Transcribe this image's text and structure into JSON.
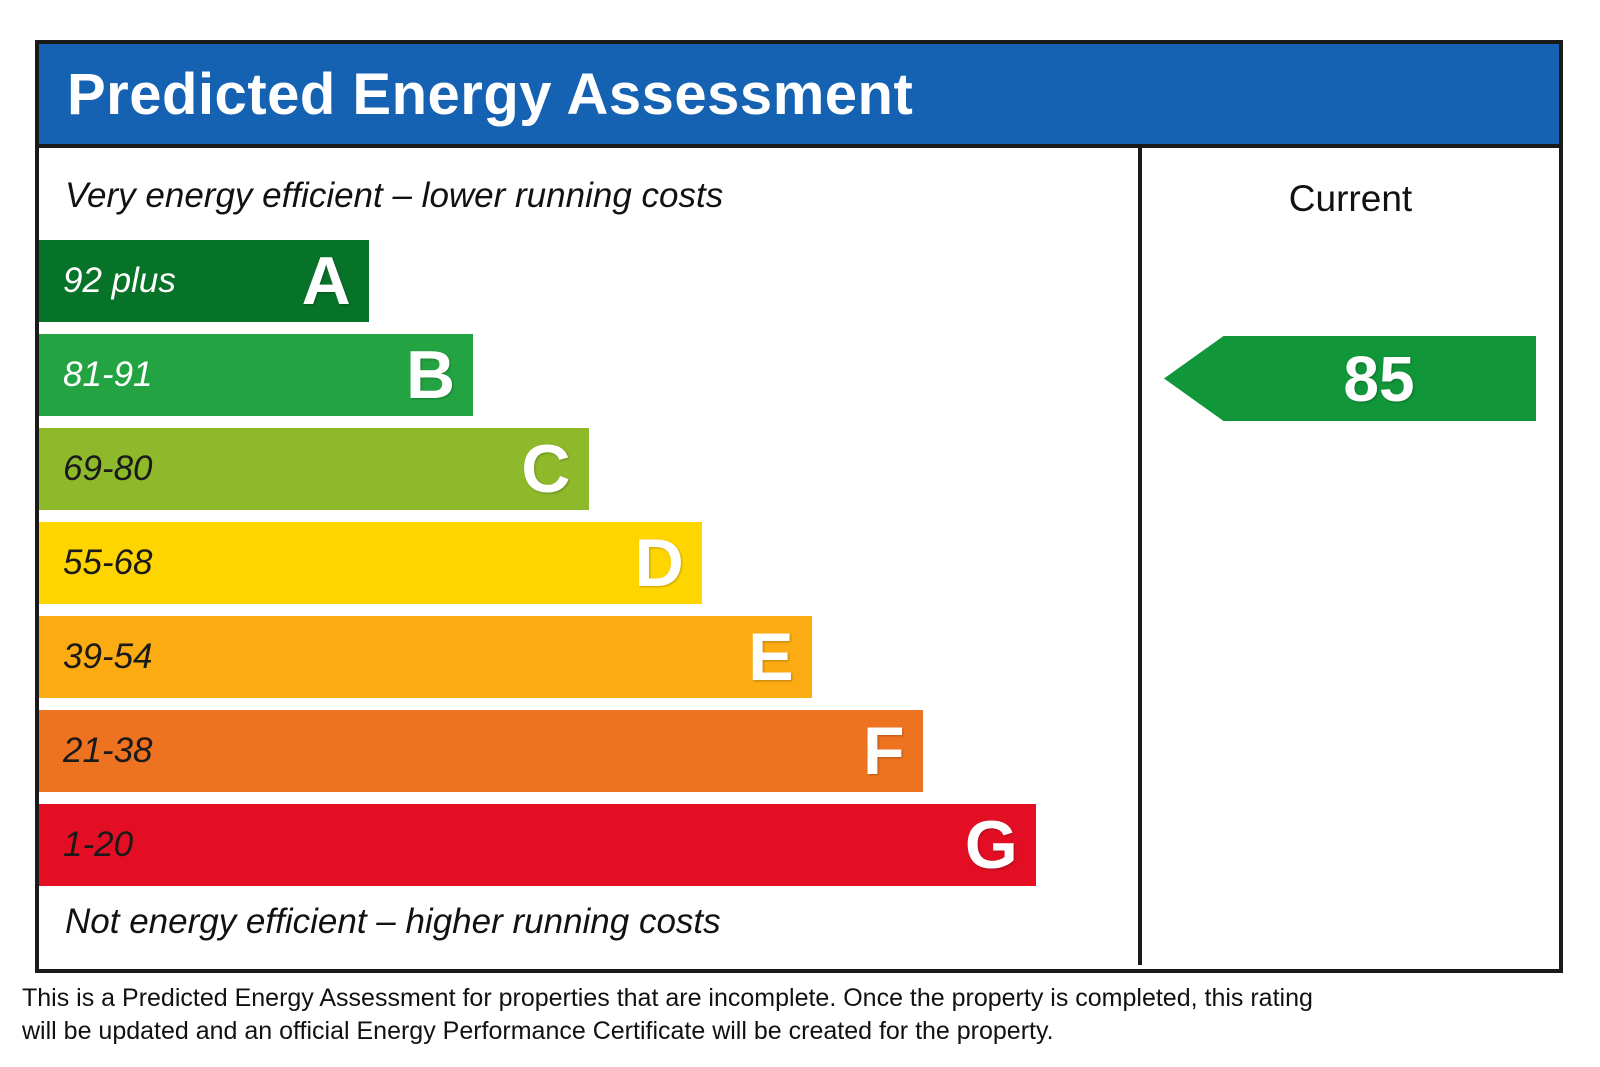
{
  "title": "Predicted Energy Assessment",
  "labels": {
    "top": "Very energy efficient – lower running costs",
    "bottom": "Not energy efficient – higher running costs"
  },
  "bands": [
    {
      "letter": "A",
      "range": "92 plus",
      "color": "#077329",
      "text_color": "#ffffff",
      "width_pct": 30.0
    },
    {
      "letter": "B",
      "range": "81-91",
      "color": "#23A341",
      "text_color": "#ffffff",
      "width_pct": 39.5
    },
    {
      "letter": "C",
      "range": "69-80",
      "color": "#8DB92A",
      "text_color": "#1a1a1a",
      "width_pct": 50.0
    },
    {
      "letter": "D",
      "range": "55-68",
      "color": "#FFD500",
      "text_color": "#1a1a1a",
      "width_pct": 60.3
    },
    {
      "letter": "E",
      "range": "39-54",
      "color": "#FCAB12",
      "text_color": "#1a1a1a",
      "width_pct": 70.3
    },
    {
      "letter": "F",
      "range": "21-38",
      "color": "#EE7320",
      "text_color": "#1a1a1a",
      "width_pct": 80.4
    },
    {
      "letter": "G",
      "range": "1-20",
      "color": "#E30E24",
      "text_color": "#1a1a1a",
      "width_pct": 90.7
    }
  ],
  "current": {
    "header": "Current",
    "value": "85",
    "band": "B",
    "arrow_color": "#119639"
  },
  "footer": "This is a Predicted Energy Assessment for properties that are incomplete. Once the property is completed, this rating will be updated and an official Energy Performance Certificate will be created for the property.",
  "colors": {
    "header_bg": "#1562B2",
    "border": "#1a1a1a"
  },
  "chart_data": {
    "type": "bar",
    "orientation": "horizontal",
    "title": "Predicted Energy Assessment",
    "categories": [
      "A",
      "B",
      "C",
      "D",
      "E",
      "F",
      "G"
    ],
    "band_ranges": [
      "92 plus",
      "81-91",
      "69-80",
      "55-68",
      "39-54",
      "21-38",
      "1-20"
    ],
    "bar_lengths_pct": [
      30.0,
      39.5,
      50.0,
      60.3,
      70.3,
      80.4,
      90.7
    ],
    "bar_colors": [
      "#077329",
      "#23A341",
      "#8DB92A",
      "#FFD500",
      "#FCAB12",
      "#EE7320",
      "#E30E24"
    ],
    "annotations": [
      "Very energy efficient – lower running costs",
      "Not energy efficient – higher running costs"
    ],
    "series": [
      {
        "name": "Current",
        "values": [
          85
        ],
        "band": "B",
        "marker_color": "#119639"
      }
    ],
    "legend_position": "right-column",
    "grid": false
  }
}
